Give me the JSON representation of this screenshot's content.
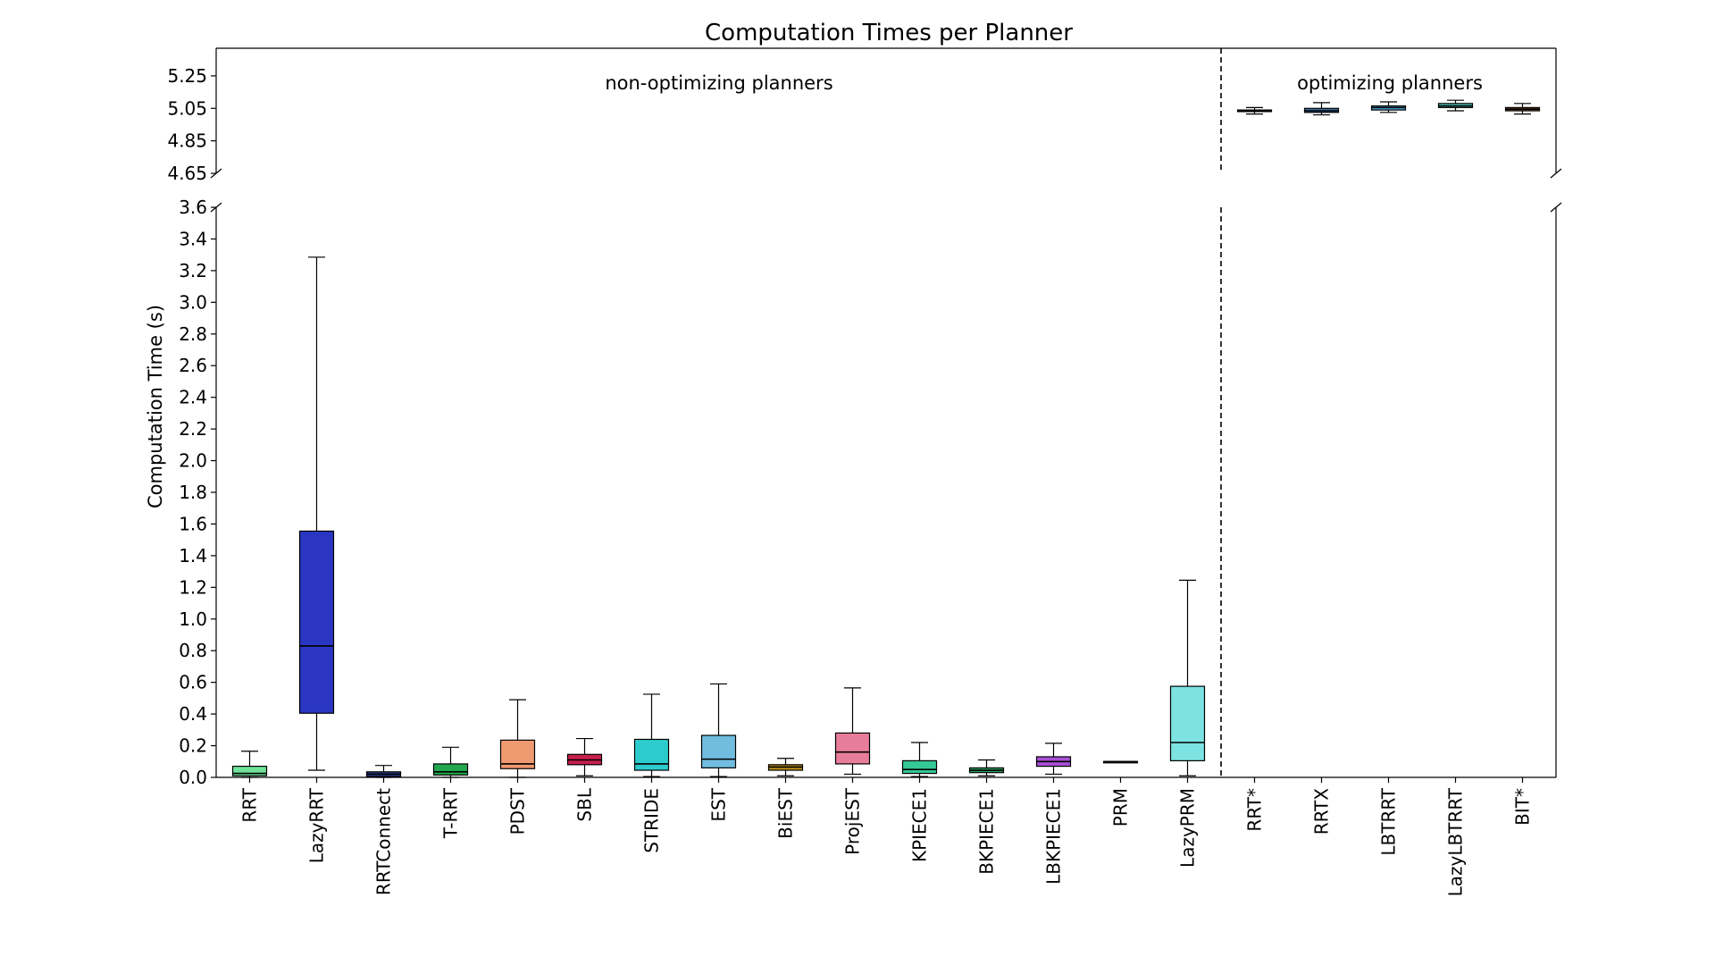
{
  "chart_data": {
    "type": "box",
    "title": "Computation Times per Planner",
    "ylabel": "Computation Time (s)",
    "xlabel": "",
    "broken_axis": true,
    "lower_ylim": [
      0.0,
      3.6
    ],
    "upper_ylim": [
      4.65,
      5.42
    ],
    "lower_yticks": [
      "0.0",
      "0.2",
      "0.4",
      "0.6",
      "0.8",
      "1.0",
      "1.2",
      "1.4",
      "1.6",
      "1.8",
      "2.0",
      "2.2",
      "2.4",
      "2.6",
      "2.8",
      "3.0",
      "3.2",
      "3.4",
      "3.6"
    ],
    "upper_yticks": [
      "4.65",
      "4.85",
      "5.05",
      "5.25"
    ],
    "group_labels": [
      "non-optimizing planners",
      "optimizing planners"
    ],
    "split_after_index": 14,
    "boxes": [
      {
        "name": "RRT",
        "group": 0,
        "color": "#6fe39a",
        "whisker_low": 0.0,
        "q1": 0.01,
        "median": 0.025,
        "q3": 0.07,
        "whisker_high": 0.165
      },
      {
        "name": "LazyRRT",
        "group": 0,
        "color": "#2a36c2",
        "whisker_low": 0.045,
        "q1": 0.405,
        "median": 0.83,
        "q3": 1.555,
        "whisker_high": 3.285
      },
      {
        "name": "RRTConnect",
        "group": 0,
        "color": "#2a3e8c",
        "whisker_low": 0.0,
        "q1": 0.005,
        "median": 0.02,
        "q3": 0.035,
        "whisker_high": 0.075
      },
      {
        "name": "T-RRT",
        "group": 0,
        "color": "#23a84e",
        "whisker_low": 0.0,
        "q1": 0.015,
        "median": 0.035,
        "q3": 0.085,
        "whisker_high": 0.19
      },
      {
        "name": "PDST",
        "group": 0,
        "color": "#ef9a70",
        "whisker_low": 0.0,
        "q1": 0.055,
        "median": 0.085,
        "q3": 0.235,
        "whisker_high": 0.49
      },
      {
        "name": "SBL",
        "group": 0,
        "color": "#c81e4e",
        "whisker_low": 0.01,
        "q1": 0.08,
        "median": 0.11,
        "q3": 0.145,
        "whisker_high": 0.245
      },
      {
        "name": "STRIDE",
        "group": 0,
        "color": "#2ccccc",
        "whisker_low": 0.005,
        "q1": 0.045,
        "median": 0.085,
        "q3": 0.24,
        "whisker_high": 0.525
      },
      {
        "name": "EST",
        "group": 0,
        "color": "#71bde0",
        "whisker_low": 0.005,
        "q1": 0.06,
        "median": 0.115,
        "q3": 0.265,
        "whisker_high": 0.59
      },
      {
        "name": "BiEST",
        "group": 0,
        "color": "#b8921c",
        "whisker_low": 0.01,
        "q1": 0.045,
        "median": 0.065,
        "q3": 0.08,
        "whisker_high": 0.12
      },
      {
        "name": "ProjEST",
        "group": 0,
        "color": "#e87d9a",
        "whisker_low": 0.02,
        "q1": 0.085,
        "median": 0.16,
        "q3": 0.28,
        "whisker_high": 0.565
      },
      {
        "name": "KPIECE1",
        "group": 0,
        "color": "#36c796",
        "whisker_low": 0.005,
        "q1": 0.025,
        "median": 0.05,
        "q3": 0.105,
        "whisker_high": 0.22
      },
      {
        "name": "BKPIECE1",
        "group": 0,
        "color": "#2e9e62",
        "whisker_low": 0.01,
        "q1": 0.03,
        "median": 0.045,
        "q3": 0.06,
        "whisker_high": 0.11
      },
      {
        "name": "LBKPIECE1",
        "group": 0,
        "color": "#a84fd6",
        "whisker_low": 0.02,
        "q1": 0.07,
        "median": 0.1,
        "q3": 0.13,
        "whisker_high": 0.215
      },
      {
        "name": "PRM",
        "group": 0,
        "color": "#3a7a3a",
        "whisker_low": 0.1,
        "q1": 0.1,
        "median": 0.1,
        "q3": 0.1,
        "whisker_high": 0.1
      },
      {
        "name": "LazyPRM",
        "group": 0,
        "color": "#7de2e2",
        "whisker_low": 0.01,
        "q1": 0.105,
        "median": 0.22,
        "q3": 0.575,
        "whisker_high": 1.245
      },
      {
        "name": "RRT*",
        "group": 1,
        "color": "#2b3a8c",
        "whisker_low": 5.015,
        "q1": 5.03,
        "median": 5.035,
        "q3": 5.04,
        "whisker_high": 5.055
      },
      {
        "name": "RRTX",
        "group": 1,
        "color": "#3b6ea8",
        "whisker_low": 5.01,
        "q1": 5.025,
        "median": 5.035,
        "q3": 5.05,
        "whisker_high": 5.085
      },
      {
        "name": "LBTRRT",
        "group": 1,
        "color": "#4fa6d8",
        "whisker_low": 5.025,
        "q1": 5.04,
        "median": 5.055,
        "q3": 5.065,
        "whisker_high": 5.09
      },
      {
        "name": "LazyLBTRRT",
        "group": 1,
        "color": "#58c6bc",
        "whisker_low": 5.035,
        "q1": 5.055,
        "median": 5.065,
        "q3": 5.08,
        "whisker_high": 5.1
      },
      {
        "name": "BIT*",
        "group": 1,
        "color": "#8b4a1c",
        "whisker_low": 5.015,
        "q1": 5.035,
        "median": 5.045,
        "q3": 5.055,
        "whisker_high": 5.08
      }
    ]
  }
}
